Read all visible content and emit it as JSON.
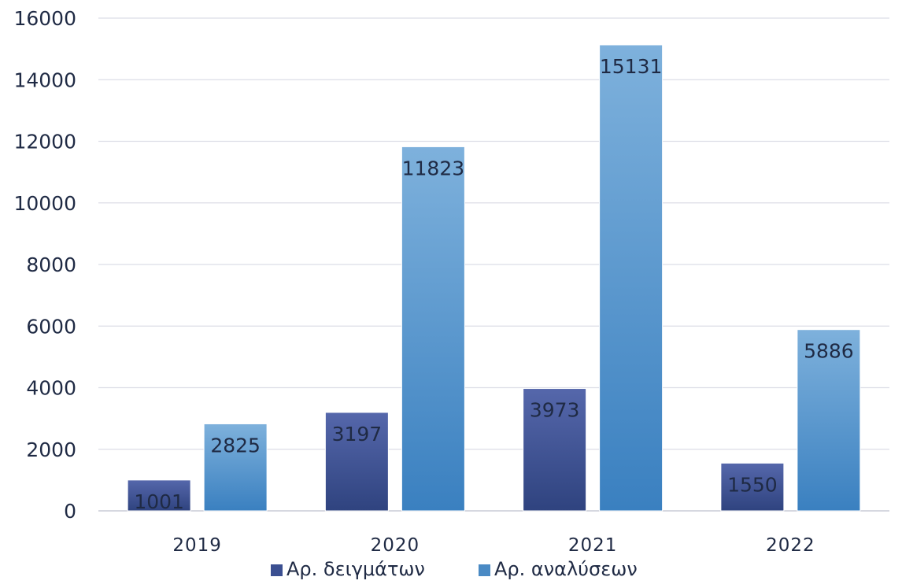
{
  "chart_data": {
    "type": "bar",
    "categories": [
      "2019",
      "2020",
      "2021",
      "2022"
    ],
    "series": [
      {
        "name": "Αρ. δειγμάτων",
        "values": [
          1001,
          3197,
          3973,
          1550
        ],
        "labels": [
          "1001",
          "3197",
          "3973",
          "1550"
        ],
        "color": "#3b4f91"
      },
      {
        "name": "Αρ. αναλύσεων",
        "values": [
          2825,
          11823,
          15131,
          5886
        ],
        "labels": [
          "2825",
          "11823",
          "15131",
          "5886"
        ],
        "color": "#4a8ac4"
      }
    ],
    "yticks": [
      "0",
      "2000",
      "4000",
      "6000",
      "8000",
      "10000",
      "12000",
      "14000",
      "16000"
    ],
    "ylim": [
      0,
      16000
    ],
    "grid": true,
    "legend_position": "bottom",
    "title": "",
    "xlabel": "",
    "ylabel": ""
  }
}
